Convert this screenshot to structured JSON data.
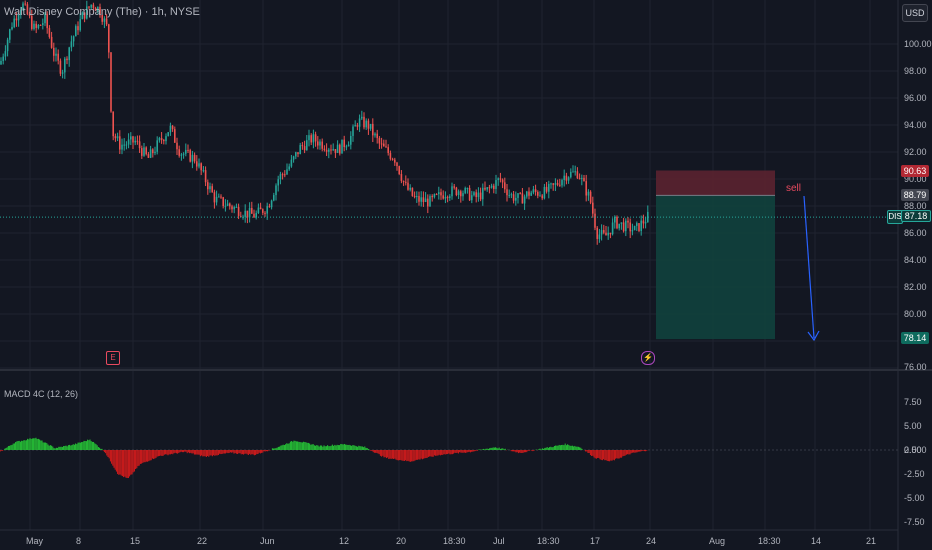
{
  "header": {
    "title": "Walt Disney Company (The) · 1h, NYSE",
    "currency_button": "USD"
  },
  "price_axis": {
    "labels": [
      "100.00",
      "98.00",
      "96.00",
      "94.00",
      "92.00",
      "90.00",
      "88.00",
      "86.00",
      "84.00",
      "82.00",
      "80.00",
      "78.00",
      "76.00"
    ],
    "tags": {
      "stop": "90.63",
      "entry": "88.79",
      "last": "87.18",
      "target": "78.14"
    },
    "symbol_badge": "DIS"
  },
  "macd_axis": {
    "labels": [
      "7.50",
      "5.00",
      "2.50",
      "0.000",
      "-2.50",
      "-5.00",
      "-7.50"
    ]
  },
  "indicator": {
    "name": "MACD 4C (12, 26)"
  },
  "time_axis": {
    "labels": [
      "May",
      "8",
      "15",
      "22",
      "Jun",
      "12",
      "20",
      "18:30",
      "Jul",
      "18:30",
      "17",
      "24",
      "Aug",
      "18:30",
      "14",
      "21"
    ]
  },
  "annotation": {
    "sell_label": "sell"
  },
  "events": {
    "earnings_icon": "earnings-icon",
    "dividend_icon": "lightning-icon"
  },
  "colors": {
    "up": "#26a69a",
    "down": "#ef5350",
    "stop_zone": "#5b2230",
    "target_zone": "#11413d",
    "arrow": "#2962ff",
    "macd_pos": "#26c636",
    "macd_neg": "#d81b1b"
  }
}
